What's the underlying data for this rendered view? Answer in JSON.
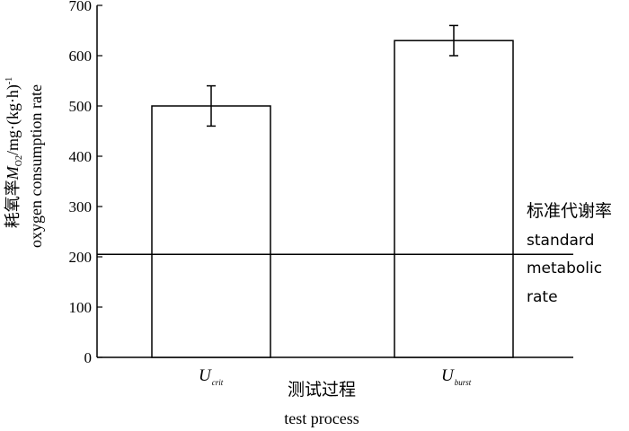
{
  "chart_data": {
    "type": "bar",
    "categories": [
      {
        "main": "U",
        "sub": "crit"
      },
      {
        "main": "U",
        "sub": "burst"
      }
    ],
    "values": [
      500,
      630
    ],
    "error_bars": [
      40,
      30
    ],
    "ylim": [
      0,
      700
    ],
    "yticks": [
      0,
      100,
      200,
      300,
      400,
      500,
      600,
      700
    ],
    "ylabel": {
      "chinese": "耗氧率",
      "symbol": "M",
      "symbol_sub": "O2",
      "unit_pre": "/mg·(kg·h)",
      "unit_sup": "-1",
      "english": "oxygen consumption rate"
    },
    "xlabel": {
      "chinese": "测试过程",
      "english": "test process"
    },
    "reference_line": {
      "value": 205,
      "label_chinese": "标准代谢率",
      "label_english": [
        "standard",
        "metabolic",
        "rate"
      ]
    },
    "grid": false,
    "legend": "none"
  }
}
